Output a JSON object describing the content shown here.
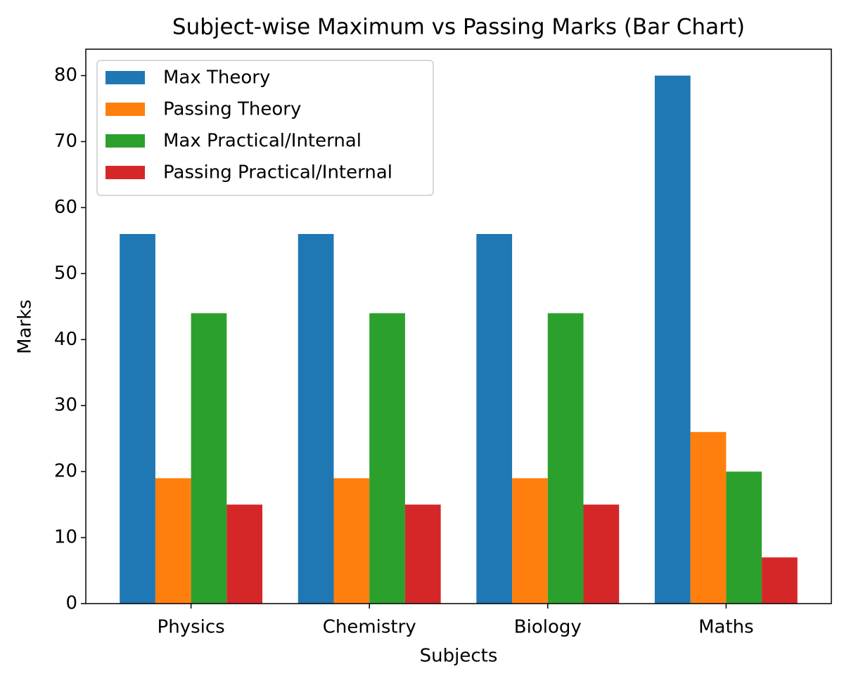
{
  "chart_data": {
    "type": "bar",
    "title": "Subject-wise Maximum vs Passing Marks (Bar Chart)",
    "x_label": "Subjects",
    "y_label": "Marks",
    "categories": [
      "Physics",
      "Chemistry",
      "Biology",
      "Maths"
    ],
    "series": [
      {
        "name": "Max Theory",
        "color": "#1f77b4",
        "values": [
          56,
          56,
          56,
          80
        ]
      },
      {
        "name": "Passing Theory",
        "color": "#ff7f0e",
        "values": [
          19,
          19,
          19,
          26
        ]
      },
      {
        "name": "Max Practical/Internal",
        "color": "#2ca02c",
        "values": [
          44,
          44,
          44,
          20
        ]
      },
      {
        "name": "Passing Practical/Internal",
        "color": "#d62728",
        "values": [
          15,
          15,
          15,
          7
        ]
      }
    ],
    "ylim": [
      0,
      84
    ],
    "yticks": [
      0,
      10,
      20,
      30,
      40,
      50,
      60,
      70,
      80
    ],
    "grid": false,
    "legend": "upper-left"
  }
}
